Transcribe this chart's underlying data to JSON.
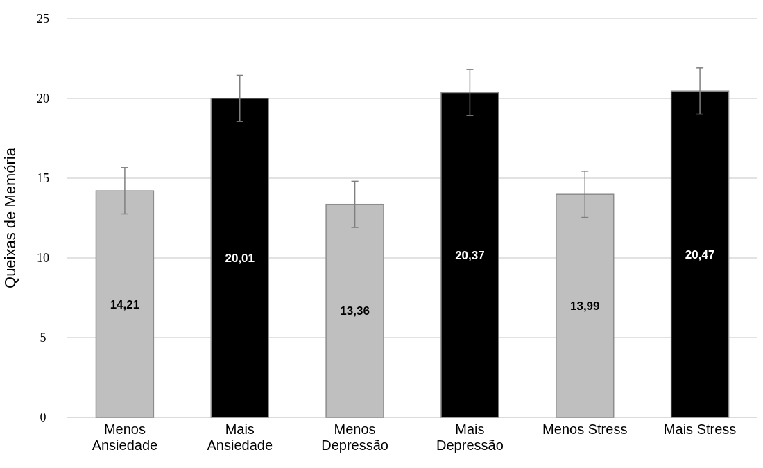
{
  "chart_data": {
    "type": "bar",
    "ylabel": "Queixas de Memória",
    "categories": [
      "Menos Ansiedade",
      "Mais Ansiedade",
      "Menos Depressão",
      "Mais Depressão",
      "Menos Stress",
      "Mais Stress"
    ],
    "values": [
      14.21,
      20.01,
      13.36,
      20.37,
      13.99,
      20.47
    ],
    "colors": [
      "#bfbfbf",
      "#000000",
      "#bfbfbf",
      "#000000",
      "#bfbfbf",
      "#000000"
    ],
    "errors": [
      1.45,
      1.45,
      1.45,
      1.45,
      1.45,
      1.45
    ],
    "value_labels": [
      "14,21",
      "20,01",
      "13,36",
      "20,37",
      "13,99",
      "20,47"
    ],
    "ylim": [
      0,
      25
    ],
    "yticks": [
      0,
      5,
      10,
      15,
      20,
      25
    ],
    "grid": "y"
  }
}
